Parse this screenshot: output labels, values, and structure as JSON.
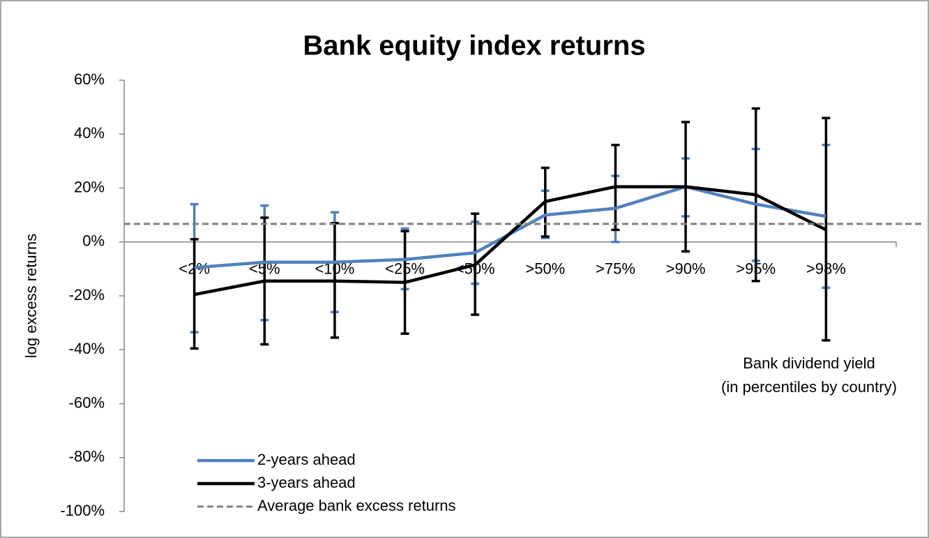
{
  "chart_data": {
    "type": "line",
    "title": "Bank equity index returns",
    "y_label": "log excess returns",
    "annotation": [
      "Bank dividend yield",
      "(in percentiles by country)"
    ],
    "categories": [
      "<2%",
      "<5%",
      "<10%",
      "<25%",
      "<50%",
      ">50%",
      ">75%",
      ">90%",
      ">95%",
      ">98%"
    ],
    "series": [
      {
        "name": "2-years ahead",
        "color": "#4f81bd",
        "values": [
          -9.5,
          -7.5,
          -7.5,
          -6.5,
          -4,
          10,
          12.5,
          20.5,
          14,
          9.5
        ],
        "upper": [
          14,
          13.5,
          11,
          5,
          7.5,
          19,
          24.5,
          31,
          34.5,
          36
        ],
        "lower": [
          -33.5,
          -29,
          -26,
          -17.5,
          -15.5,
          1.5,
          0,
          9.5,
          -7,
          -17
        ]
      },
      {
        "name": "3-years ahead",
        "color": "#000000",
        "values": [
          -19.5,
          -14.5,
          -14.5,
          -15,
          -8.5,
          15,
          20.5,
          20.5,
          17.5,
          4.5
        ],
        "upper": [
          1,
          9,
          7,
          4,
          10.5,
          27.5,
          36,
          44.5,
          49.5,
          46
        ],
        "lower": [
          -39.5,
          -38,
          -35.5,
          -34,
          -27,
          2,
          4.5,
          -3.5,
          -14.5,
          -36.5
        ]
      }
    ],
    "reference_line": {
      "name": "Average bank excess returns",
      "value": 6.7,
      "color": "#7f7f7f"
    },
    "ylim": [
      -100,
      60
    ],
    "yticks": [
      {
        "value": -100,
        "label": "-100%"
      },
      {
        "value": -80,
        "label": "-80%"
      },
      {
        "value": -60,
        "label": "-60%"
      },
      {
        "value": -40,
        "label": "-40%"
      },
      {
        "value": -20,
        "label": "-20%"
      },
      {
        "value": 0,
        "label": "0%"
      },
      {
        "value": 20,
        "label": "20%"
      },
      {
        "value": 40,
        "label": "40%"
      },
      {
        "value": 60,
        "label": "60%"
      }
    ],
    "grid": false,
    "legend": "bottom-left"
  }
}
